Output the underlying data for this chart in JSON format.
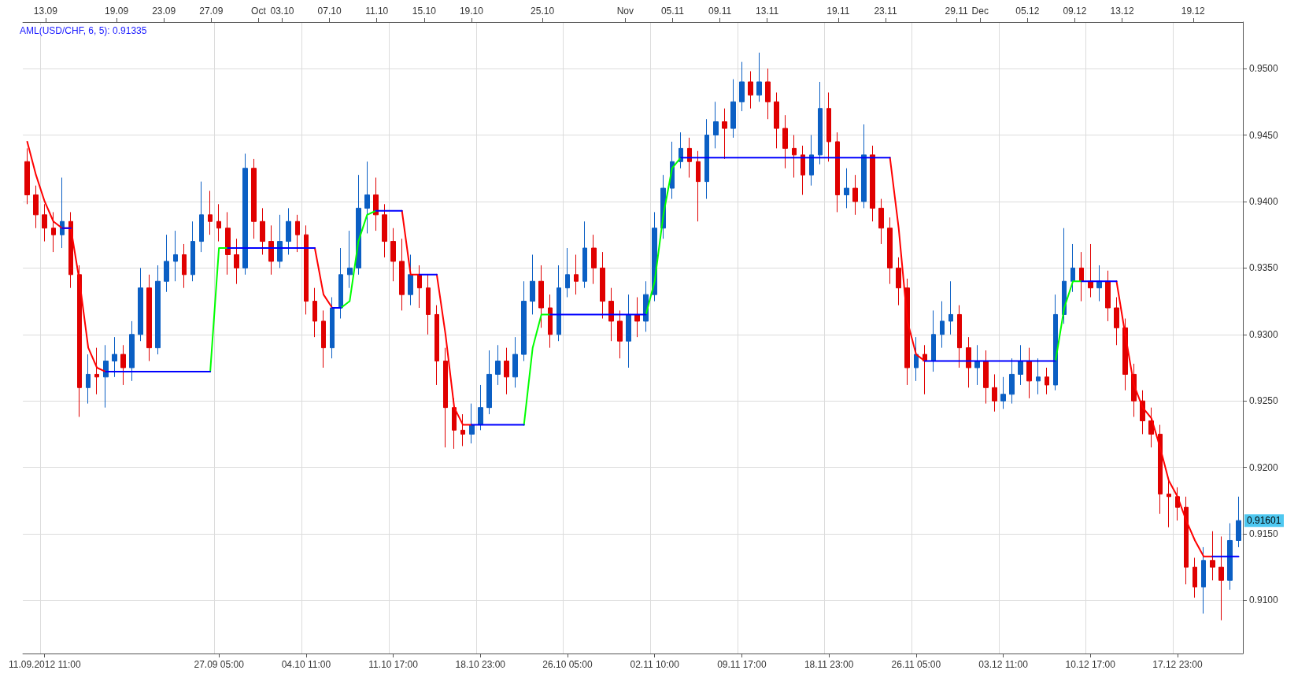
{
  "chart_data": {
    "type": "candlestick",
    "title": "AML(USD/CHF, 6, 5): 0.91335",
    "categories": [
      null,
      null,
      "11.09.2012 11:00",
      null,
      null,
      null,
      null,
      null,
      null,
      null,
      null,
      null,
      null,
      null,
      null,
      null,
      null,
      null,
      null,
      null,
      null,
      null,
      "27.09 05:00",
      null,
      null,
      null,
      null,
      null,
      null,
      null,
      null,
      null,
      "04.10 11:00",
      null,
      null,
      null,
      null,
      null,
      null,
      null,
      null,
      null,
      "11.10 17:00",
      null,
      null,
      null,
      null,
      null,
      null,
      null,
      null,
      null,
      "18.10 23:00",
      null,
      null,
      null,
      null,
      null,
      null,
      null,
      null,
      null,
      "26.10 05:00",
      null,
      null,
      null,
      null,
      null,
      null,
      null,
      null,
      null,
      "02.11 10:00",
      null,
      null,
      null,
      null,
      null,
      null,
      null,
      null,
      null,
      "09.11 17:00",
      null,
      null,
      null,
      null,
      null,
      null,
      null,
      null,
      null,
      "18.11 23:00",
      null,
      null,
      null,
      null,
      null,
      null,
      null,
      null,
      null,
      "26.11 05:00",
      null,
      null,
      null,
      null,
      null,
      null,
      null,
      null,
      null,
      "03.12 11:00",
      null,
      null,
      null,
      null,
      null,
      null,
      null,
      null,
      null,
      "10.12 17:00",
      null,
      null,
      null,
      null,
      null,
      null,
      null,
      null,
      null,
      "17.12 23:00",
      null,
      null,
      null,
      null,
      null,
      null,
      null
    ],
    "x2lim": [
      "2012-09-11T02:00",
      "2012-12-23T05:00"
    ],
    "x2ticks": [
      {
        "value": "2012-09-13",
        "label": "13.09"
      },
      {
        "value": "2012-09-19",
        "label": "19.09"
      },
      {
        "value": "2012-09-23",
        "label": "23.09"
      },
      {
        "value": "2012-09-27",
        "label": "27.09"
      },
      {
        "value": "2012-10-01",
        "label": "Oct"
      },
      {
        "value": "2012-10-03",
        "label": "03.10"
      },
      {
        "value": "2012-10-07",
        "label": "07.10"
      },
      {
        "value": "2012-10-11",
        "label": "11.10"
      },
      {
        "value": "2012-10-15",
        "label": "15.10"
      },
      {
        "value": "2012-10-19",
        "label": "19.10"
      },
      {
        "value": "2012-10-25",
        "label": "25.10"
      },
      {
        "value": "2012-11-01",
        "label": "Nov"
      },
      {
        "value": "2012-11-05",
        "label": "05.11"
      },
      {
        "value": "2012-11-09",
        "label": "09.11"
      },
      {
        "value": "2012-11-13",
        "label": "13.11"
      },
      {
        "value": "2012-11-19",
        "label": "19.11"
      },
      {
        "value": "2012-11-23",
        "label": "23.11"
      },
      {
        "value": "2012-11-29",
        "label": "29.11"
      },
      {
        "value": "2012-12-01",
        "label": "Dec"
      },
      {
        "value": "2012-12-05",
        "label": "05.12"
      },
      {
        "value": "2012-12-09",
        "label": "09.12"
      },
      {
        "value": "2012-12-13",
        "label": "13.12"
      },
      {
        "value": "2012-12-19",
        "label": "19.12"
      }
    ],
    "ylim": [
      0.906,
      0.9535
    ],
    "yticks": [
      {
        "value": 0.91,
        "label": "0.9100"
      },
      {
        "value": 0.915,
        "label": "0.9150"
      },
      {
        "value": 0.92,
        "label": "0.9200"
      },
      {
        "value": 0.925,
        "label": "0.9250"
      },
      {
        "value": 0.93,
        "label": "0.9300"
      },
      {
        "value": 0.935,
        "label": "0.9350"
      },
      {
        "value": 0.94,
        "label": "0.9400"
      },
      {
        "value": 0.945,
        "label": "0.9450"
      },
      {
        "value": 0.95,
        "label": "0.9500"
      }
    ],
    "grid": true,
    "annotations": [
      "0.91601"
    ],
    "series": [
      {
        "type": "line",
        "color": "#ff0000",
        "values": [
          0.9445,
          0.942,
          0.94,
          0.9385,
          0.938,
          0.938,
          0.934,
          0.929,
          0.9275,
          0.9272,
          null,
          null,
          null,
          null,
          null,
          null,
          null,
          null,
          null,
          null,
          null,
          null,
          null,
          null,
          null,
          null,
          null,
          null,
          null,
          null,
          null,
          null,
          null,
          0.9365,
          0.933,
          0.932,
          null,
          null,
          null,
          null,
          null,
          null,
          null,
          0.9393,
          0.9345,
          0.9345,
          null,
          0.9345,
          0.93,
          0.9245,
          0.9232,
          0.9232,
          null,
          null,
          null,
          null,
          null,
          null,
          null,
          null,
          null,
          null,
          null,
          null,
          null,
          null,
          null,
          null,
          null,
          null,
          null,
          null,
          null,
          null,
          null,
          null,
          null,
          null,
          null,
          null,
          null,
          null,
          null,
          null,
          null,
          null,
          null,
          null,
          null,
          null,
          null,
          null,
          null,
          null,
          null,
          null,
          null,
          null,
          null,
          0.9433,
          0.938,
          0.931,
          0.9285,
          0.928,
          null,
          null,
          null,
          null,
          null,
          null,
          null,
          null,
          null,
          null,
          null,
          null,
          null,
          null,
          null,
          null,
          null,
          null,
          null,
          null,
          null,
          0.934,
          0.93,
          0.9262,
          0.9245,
          0.9237,
          0.9215,
          0.919,
          0.9178,
          0.916,
          0.9145,
          0.9133,
          0.9133,
          null,
          null,
          null
        ]
      },
      {
        "type": "line",
        "color": "#00ff00",
        "values": [
          null,
          null,
          null,
          null,
          null,
          null,
          null,
          null,
          null,
          null,
          null,
          null,
          null,
          null,
          null,
          null,
          null,
          null,
          null,
          null,
          null,
          0.9272,
          0.9365,
          0.9365,
          null,
          null,
          null,
          null,
          null,
          null,
          null,
          null,
          null,
          null,
          null,
          null,
          0.932,
          0.9325,
          0.937,
          0.939,
          0.9393,
          null,
          null,
          null,
          null,
          null,
          null,
          null,
          null,
          null,
          null,
          null,
          null,
          null,
          null,
          null,
          null,
          0.9232,
          0.929,
          0.9315,
          0.9315,
          null,
          null,
          null,
          null,
          null,
          null,
          null,
          null,
          null,
          null,
          0.9315,
          0.934,
          0.939,
          0.9425,
          0.9433,
          null,
          null,
          null,
          null,
          null,
          null,
          null,
          null,
          null,
          null,
          null,
          null,
          null,
          null,
          null,
          null,
          null,
          null,
          null,
          null,
          null,
          null,
          null,
          null,
          null,
          null,
          null,
          null,
          null,
          null,
          null,
          null,
          null,
          null,
          null,
          null,
          null,
          null,
          null,
          null,
          null,
          null,
          0.928,
          0.932,
          0.934,
          0.934,
          null,
          null,
          null,
          null,
          null,
          null,
          null,
          null,
          null,
          null,
          null,
          null,
          null,
          null,
          null,
          null,
          null,
          null
        ]
      },
      {
        "type": "line",
        "color": "#0000ff",
        "values": [
          null,
          null,
          null,
          null,
          0.938,
          0.938,
          null,
          null,
          null,
          0.9272,
          0.9272,
          0.9272,
          0.9272,
          0.9272,
          0.9272,
          0.9272,
          0.9272,
          0.9272,
          0.9272,
          0.9272,
          0.9272,
          0.9272,
          null,
          0.9365,
          0.9365,
          0.9365,
          0.9365,
          0.9365,
          0.9365,
          0.9365,
          0.9365,
          0.9365,
          0.9365,
          0.9365,
          null,
          0.932,
          0.932,
          null,
          null,
          null,
          0.9393,
          0.9393,
          0.9393,
          0.9393,
          null,
          0.9345,
          0.9345,
          0.9345,
          null,
          null,
          null,
          0.9232,
          0.9232,
          0.9232,
          0.9232,
          0.9232,
          0.9232,
          0.9232,
          null,
          null,
          0.9315,
          0.9315,
          0.9315,
          0.9315,
          0.9315,
          0.9315,
          0.9315,
          0.9315,
          0.9315,
          0.9315,
          0.9315,
          0.9315,
          null,
          null,
          null,
          0.9433,
          0.9433,
          0.9433,
          0.9433,
          0.9433,
          0.9433,
          0.9433,
          0.9433,
          0.9433,
          0.9433,
          0.9433,
          0.9433,
          0.9433,
          0.9433,
          0.9433,
          0.9433,
          0.9433,
          0.9433,
          0.9433,
          0.9433,
          0.9433,
          0.9433,
          0.9433,
          0.9433,
          0.9433,
          null,
          null,
          null,
          0.928,
          0.928,
          0.928,
          0.928,
          0.928,
          0.928,
          0.928,
          0.928,
          0.928,
          0.928,
          0.928,
          0.928,
          0.928,
          0.928,
          0.928,
          0.928,
          null,
          null,
          0.934,
          0.934,
          0.934,
          0.934,
          0.934,
          null,
          null,
          null,
          null,
          null,
          null,
          null,
          null,
          null,
          null,
          0.9133,
          0.9133,
          0.9133,
          0.9133
        ]
      },
      {
        "colors": [
          "#e00000",
          "#e00000",
          "#e00000",
          "#e00000",
          "#0b5fc4",
          "#e00000",
          "#e00000",
          "#0b5fc4",
          "#e00000",
          "#0b5fc4",
          "#0b5fc4",
          "#e00000",
          "#0b5fc4",
          "#0b5fc4",
          "#e00000",
          "#0b5fc4",
          "#0b5fc4",
          "#0b5fc4",
          "#e00000",
          "#0b5fc4",
          "#0b5fc4",
          "#e00000",
          "#e00000",
          "#e00000",
          "#e00000",
          "#0b5fc4",
          "#e00000",
          "#e00000",
          "#e00000",
          "#0b5fc4",
          "#0b5fc4",
          "#e00000",
          "#e00000",
          "#e00000",
          "#e00000",
          "#0b5fc4",
          "#0b5fc4",
          "#0b5fc4",
          "#0b5fc4",
          "#0b5fc4",
          "#e00000",
          "#e00000",
          "#e00000",
          "#e00000",
          "#0b5fc4",
          "#e00000",
          "#e00000",
          "#e00000",
          "#e00000",
          "#e00000",
          "#e00000",
          "#0b5fc4",
          "#0b5fc4",
          "#0b5fc4",
          "#0b5fc4",
          "#e00000",
          "#0b5fc4",
          "#0b5fc4",
          "#0b5fc4",
          "#e00000",
          "#e00000",
          "#0b5fc4",
          "#0b5fc4",
          "#e00000",
          "#0b5fc4",
          "#e00000",
          "#e00000",
          "#e00000",
          "#e00000",
          "#0b5fc4",
          "#e00000",
          "#0b5fc4",
          "#0b5fc4",
          "#0b5fc4",
          "#0b5fc4",
          "#0b5fc4",
          "#e00000",
          "#e00000",
          "#0b5fc4",
          "#0b5fc4",
          "#e00000",
          "#0b5fc4",
          "#0b5fc4",
          "#e00000",
          "#0b5fc4",
          "#e00000",
          "#e00000",
          "#e00000",
          "#e00000",
          "#e00000",
          "#0b5fc4",
          "#0b5fc4",
          "#e00000",
          "#e00000",
          "#0b5fc4",
          "#e00000",
          "#0b5fc4",
          "#e00000",
          "#e00000",
          "#e00000",
          "#e00000",
          "#e00000",
          "#0b5fc4",
          "#e00000",
          "#0b5fc4",
          "#0b5fc4",
          "#0b5fc4",
          "#e00000",
          "#e00000",
          "#0b5fc4",
          "#e00000",
          "#e00000",
          "#0b5fc4",
          "#0b5fc4",
          "#0b5fc4",
          "#e00000",
          "#0b5fc4",
          "#e00000",
          "#0b5fc4",
          "#0b5fc4",
          "#0b5fc4",
          "#e00000",
          "#e00000",
          "#0b5fc4",
          "#e00000",
          "#e00000",
          "#e00000",
          "#e00000",
          "#e00000",
          "#e00000",
          "#e00000",
          "#e00000",
          "#e00000",
          "#e00000",
          "#e00000",
          "#0b5fc4",
          "#e00000",
          "#e00000",
          "#0b5fc4",
          "#0b5fc4"
        ],
        "ohlc": [
          [
            0.943,
            0.944,
            0.9398,
            0.9405
          ],
          [
            0.9405,
            0.9412,
            0.938,
            0.939
          ],
          [
            0.939,
            0.9398,
            0.937,
            0.938
          ],
          [
            0.938,
            0.9392,
            0.9362,
            0.9375
          ],
          [
            0.9375,
            0.9418,
            0.9365,
            0.9385
          ],
          [
            0.9385,
            0.9392,
            0.9335,
            0.9345
          ],
          [
            0.9345,
            0.9352,
            0.9238,
            0.926
          ],
          [
            0.926,
            0.9285,
            0.9248,
            0.927
          ],
          [
            0.927,
            0.929,
            0.9255,
            0.9268
          ],
          [
            0.9268,
            0.9292,
            0.9245,
            0.928
          ],
          [
            0.928,
            0.9298,
            0.9268,
            0.9285
          ],
          [
            0.9285,
            0.9292,
            0.9262,
            0.9275
          ],
          [
            0.9275,
            0.931,
            0.9265,
            0.93
          ],
          [
            0.93,
            0.935,
            0.9295,
            0.9335
          ],
          [
            0.9335,
            0.9345,
            0.928,
            0.929
          ],
          [
            0.929,
            0.9352,
            0.9285,
            0.934
          ],
          [
            0.934,
            0.9375,
            0.9332,
            0.9355
          ],
          [
            0.9355,
            0.9378,
            0.934,
            0.936
          ],
          [
            0.936,
            0.9368,
            0.9335,
            0.9345
          ],
          [
            0.9345,
            0.9385,
            0.934,
            0.937
          ],
          [
            0.937,
            0.9415,
            0.9362,
            0.939
          ],
          [
            0.939,
            0.9408,
            0.9375,
            0.9385
          ],
          [
            0.9385,
            0.9398,
            0.937,
            0.938
          ],
          [
            0.938,
            0.9392,
            0.9345,
            0.936
          ],
          [
            0.936,
            0.9372,
            0.9338,
            0.935
          ],
          [
            0.935,
            0.9436,
            0.9345,
            0.9425
          ],
          [
            0.9425,
            0.9432,
            0.9372,
            0.9385
          ],
          [
            0.9385,
            0.9395,
            0.936,
            0.937
          ],
          [
            0.937,
            0.9382,
            0.9345,
            0.9355
          ],
          [
            0.9355,
            0.939,
            0.935,
            0.937
          ],
          [
            0.937,
            0.9395,
            0.936,
            0.9385
          ],
          [
            0.9385,
            0.939,
            0.9362,
            0.9375
          ],
          [
            0.9375,
            0.9382,
            0.9315,
            0.9325
          ],
          [
            0.9325,
            0.9335,
            0.9298,
            0.931
          ],
          [
            0.931,
            0.9318,
            0.9275,
            0.929
          ],
          [
            0.929,
            0.9328,
            0.9282,
            0.932
          ],
          [
            0.932,
            0.9365,
            0.9312,
            0.9345
          ],
          [
            0.9345,
            0.9378,
            0.9335,
            0.935
          ],
          [
            0.935,
            0.942,
            0.9345,
            0.9395
          ],
          [
            0.9395,
            0.943,
            0.9376,
            0.9405
          ],
          [
            0.9405,
            0.9418,
            0.9378,
            0.939
          ],
          [
            0.939,
            0.9398,
            0.9358,
            0.937
          ],
          [
            0.937,
            0.938,
            0.934,
            0.9355
          ],
          [
            0.9355,
            0.9372,
            0.9318,
            0.933
          ],
          [
            0.933,
            0.936,
            0.9322,
            0.9345
          ],
          [
            0.9345,
            0.9352,
            0.932,
            0.9335
          ],
          [
            0.9335,
            0.9345,
            0.93,
            0.9315
          ],
          [
            0.9315,
            0.9322,
            0.9262,
            0.928
          ],
          [
            0.928,
            0.929,
            0.9215,
            0.9245
          ],
          [
            0.9245,
            0.9252,
            0.9214,
            0.9228
          ],
          [
            0.9228,
            0.924,
            0.9216,
            0.9225
          ],
          [
            0.9225,
            0.9248,
            0.9218,
            0.9232
          ],
          [
            0.9232,
            0.9262,
            0.9228,
            0.9245
          ],
          [
            0.9245,
            0.9288,
            0.924,
            0.927
          ],
          [
            0.927,
            0.9292,
            0.9262,
            0.928
          ],
          [
            0.928,
            0.929,
            0.9255,
            0.9268
          ],
          [
            0.9268,
            0.9298,
            0.926,
            0.9285
          ],
          [
            0.9285,
            0.934,
            0.928,
            0.9325
          ],
          [
            0.9325,
            0.936,
            0.9315,
            0.934
          ],
          [
            0.934,
            0.9352,
            0.9305,
            0.932
          ],
          [
            0.932,
            0.933,
            0.929,
            0.93
          ],
          [
            0.93,
            0.9352,
            0.9295,
            0.9335
          ],
          [
            0.9335,
            0.9365,
            0.9328,
            0.9345
          ],
          [
            0.9345,
            0.936,
            0.933,
            0.934
          ],
          [
            0.934,
            0.9385,
            0.9335,
            0.9365
          ],
          [
            0.9365,
            0.9375,
            0.9338,
            0.935
          ],
          [
            0.935,
            0.9362,
            0.9312,
            0.9325
          ],
          [
            0.9325,
            0.9335,
            0.9295,
            0.931
          ],
          [
            0.931,
            0.9318,
            0.9282,
            0.9295
          ],
          [
            0.9295,
            0.933,
            0.9275,
            0.9315
          ],
          [
            0.9315,
            0.9328,
            0.9298,
            0.931
          ],
          [
            0.931,
            0.934,
            0.9302,
            0.933
          ],
          [
            0.933,
            0.9392,
            0.9325,
            0.938
          ],
          [
            0.938,
            0.942,
            0.9372,
            0.941
          ],
          [
            0.941,
            0.9445,
            0.9402,
            0.943
          ],
          [
            0.943,
            0.9452,
            0.9425,
            0.944
          ],
          [
            0.944,
            0.9448,
            0.9418,
            0.943
          ],
          [
            0.943,
            0.9438,
            0.9385,
            0.9415
          ],
          [
            0.9415,
            0.9462,
            0.9402,
            0.945
          ],
          [
            0.945,
            0.9475,
            0.944,
            0.946
          ],
          [
            0.946,
            0.947,
            0.9432,
            0.9455
          ],
          [
            0.9455,
            0.9492,
            0.9448,
            0.9475
          ],
          [
            0.9475,
            0.9505,
            0.9468,
            0.949
          ],
          [
            0.949,
            0.9498,
            0.947,
            0.948
          ],
          [
            0.948,
            0.9512,
            0.9475,
            0.949
          ],
          [
            0.949,
            0.95,
            0.9462,
            0.9475
          ],
          [
            0.9475,
            0.9482,
            0.944,
            0.9455
          ],
          [
            0.9455,
            0.9465,
            0.9425,
            0.944
          ],
          [
            0.944,
            0.945,
            0.9418,
            0.9435
          ],
          [
            0.9435,
            0.9442,
            0.9405,
            0.942
          ],
          [
            0.942,
            0.945,
            0.9412,
            0.9435
          ],
          [
            0.9435,
            0.949,
            0.9428,
            0.947
          ],
          [
            0.947,
            0.9482,
            0.943,
            0.9445
          ],
          [
            0.9445,
            0.9452,
            0.9392,
            0.9405
          ],
          [
            0.9405,
            0.9425,
            0.9395,
            0.941
          ],
          [
            0.941,
            0.942,
            0.939,
            0.94
          ],
          [
            0.94,
            0.9458,
            0.9395,
            0.9435
          ],
          [
            0.9435,
            0.9442,
            0.9385,
            0.9395
          ],
          [
            0.9395,
            0.9402,
            0.9368,
            0.938
          ],
          [
            0.938,
            0.9388,
            0.9338,
            0.935
          ],
          [
            0.935,
            0.9358,
            0.9322,
            0.9335
          ],
          [
            0.9335,
            0.9342,
            0.9262,
            0.9275
          ],
          [
            0.9275,
            0.9298,
            0.9265,
            0.9285
          ],
          [
            0.9285,
            0.9292,
            0.9255,
            0.928
          ],
          [
            0.928,
            0.9318,
            0.9272,
            0.93
          ],
          [
            0.93,
            0.9325,
            0.929,
            0.931
          ],
          [
            0.931,
            0.934,
            0.93,
            0.9315
          ],
          [
            0.9315,
            0.9322,
            0.9275,
            0.929
          ],
          [
            0.929,
            0.9298,
            0.926,
            0.9275
          ],
          [
            0.9275,
            0.9292,
            0.9262,
            0.928
          ],
          [
            0.928,
            0.9288,
            0.9248,
            0.926
          ],
          [
            0.926,
            0.927,
            0.9242,
            0.925
          ],
          [
            0.925,
            0.9268,
            0.9244,
            0.9255
          ],
          [
            0.9255,
            0.9282,
            0.9248,
            0.927
          ],
          [
            0.927,
            0.9292,
            0.9262,
            0.928
          ],
          [
            0.928,
            0.929,
            0.9252,
            0.9265
          ],
          [
            0.9265,
            0.9282,
            0.9255,
            0.9268
          ],
          [
            0.9268,
            0.9275,
            0.9255,
            0.9262
          ],
          [
            0.9262,
            0.933,
            0.9258,
            0.9315
          ],
          [
            0.9315,
            0.938,
            0.9308,
            0.934
          ],
          [
            0.934,
            0.9368,
            0.9332,
            0.935
          ],
          [
            0.935,
            0.9362,
            0.9325,
            0.934
          ],
          [
            0.934,
            0.9368,
            0.9328,
            0.9335
          ],
          [
            0.9335,
            0.9352,
            0.9325,
            0.934
          ],
          [
            0.934,
            0.9348,
            0.931,
            0.932
          ],
          [
            0.932,
            0.9328,
            0.9292,
            0.9305
          ],
          [
            0.9305,
            0.9312,
            0.9258,
            0.927
          ],
          [
            0.927,
            0.9278,
            0.9238,
            0.925
          ],
          [
            0.925,
            0.9258,
            0.9225,
            0.9235
          ],
          [
            0.9235,
            0.9245,
            0.9215,
            0.9225
          ],
          [
            0.9225,
            0.9232,
            0.9165,
            0.918
          ],
          [
            0.918,
            0.9192,
            0.9155,
            0.9178
          ],
          [
            0.9178,
            0.9185,
            0.916,
            0.917
          ],
          [
            0.917,
            0.9178,
            0.9112,
            0.9125
          ],
          [
            0.9125,
            0.9132,
            0.9102,
            0.911
          ],
          [
            0.911,
            0.914,
            0.909,
            0.913
          ],
          [
            0.913,
            0.9152,
            0.9115,
            0.9125
          ],
          [
            0.9125,
            0.9148,
            0.9085,
            0.9115
          ],
          [
            0.9115,
            0.9158,
            0.9108,
            0.9145
          ],
          [
            0.9145,
            0.9178,
            0.914,
            0.916
          ]
        ]
      }
    ]
  }
}
